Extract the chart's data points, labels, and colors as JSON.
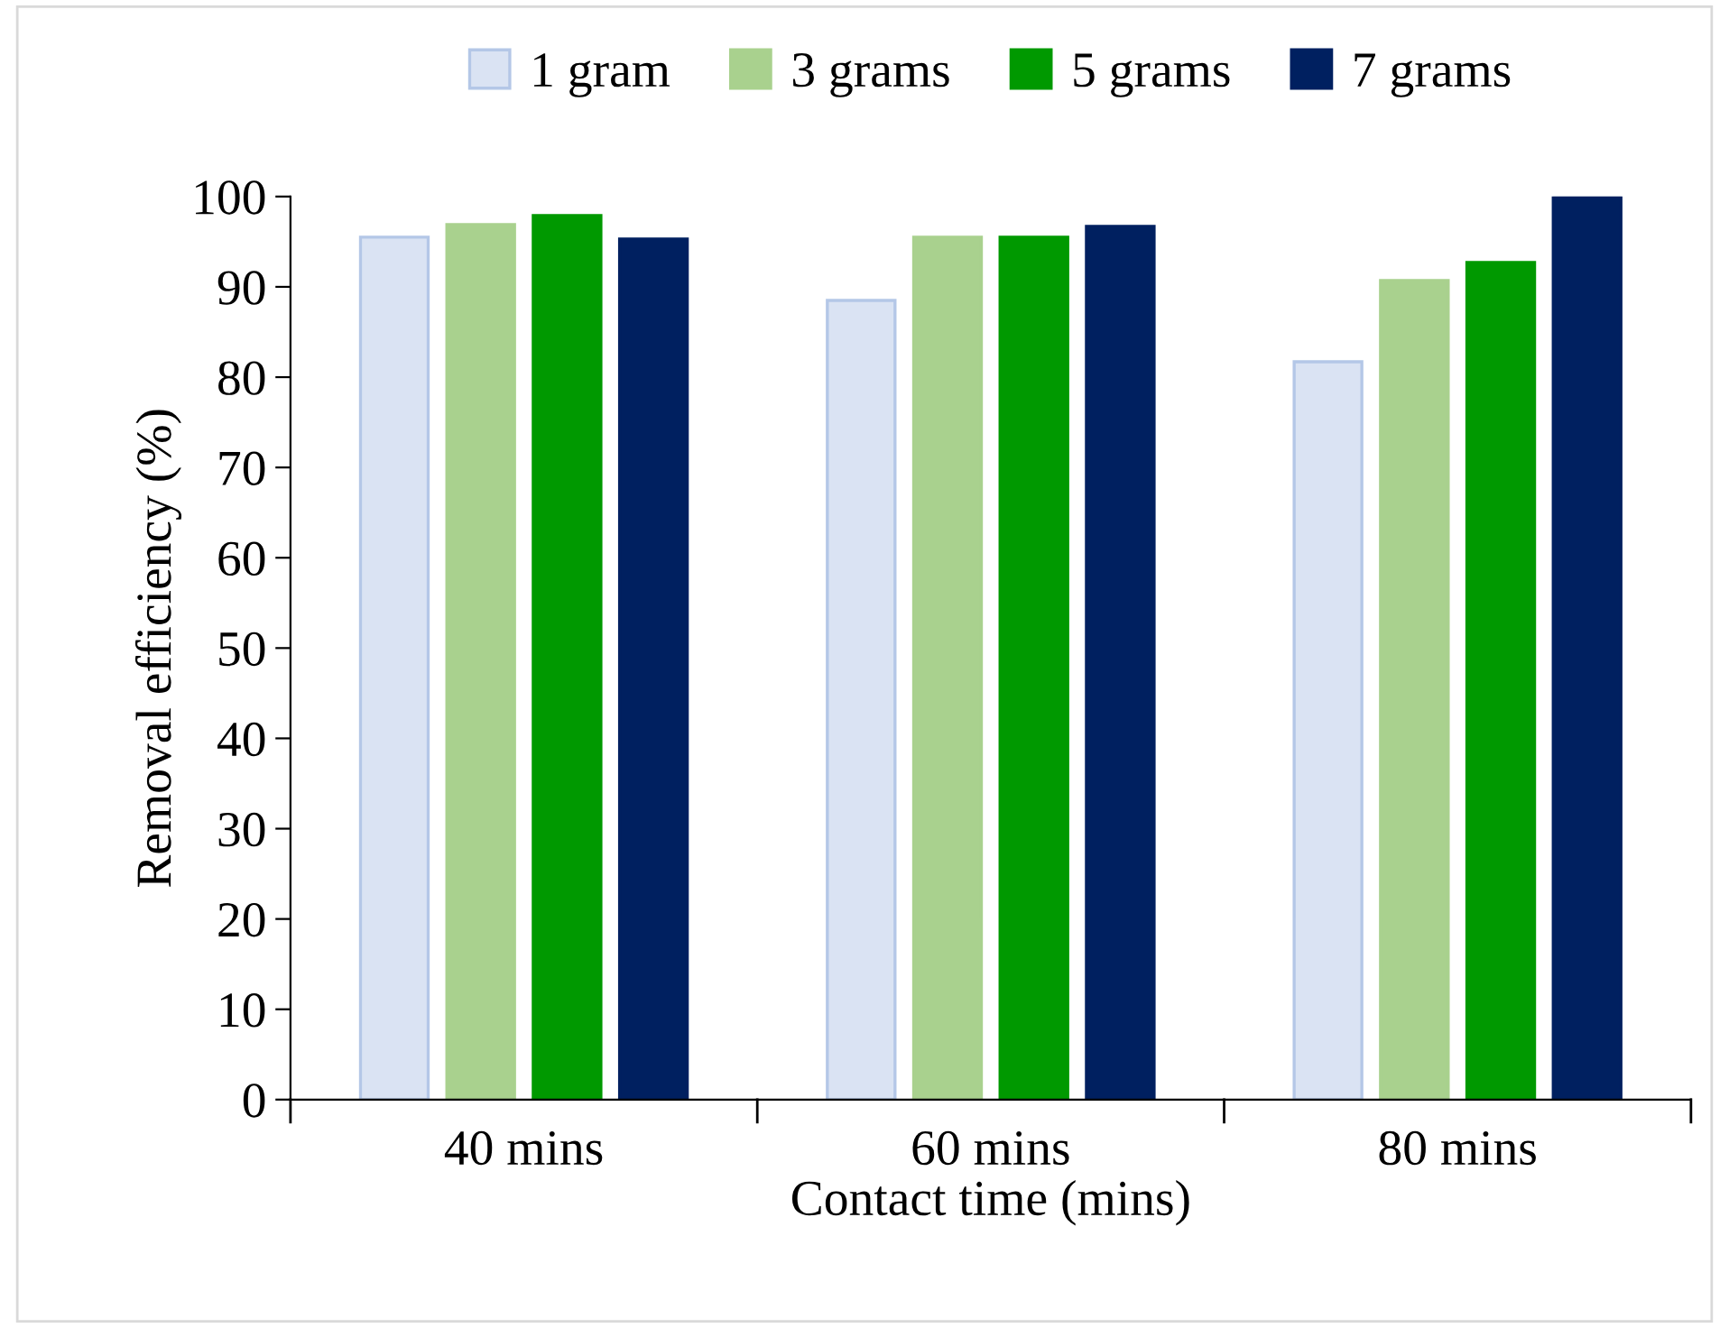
{
  "chart_data": {
    "type": "bar",
    "xlabel": "Contact time (mins)",
    "ylabel": "Removal efficiency (%)",
    "categories": [
      "40 mins",
      "60 mins",
      "80 mins"
    ],
    "series": [
      {
        "name": "1 gram",
        "color": "#dae3f3",
        "values": [
          95.5,
          88.5,
          81.7
        ]
      },
      {
        "name": "3 grams",
        "color": "#a9d18e",
        "values": [
          96.9,
          95.5,
          90.7
        ]
      },
      {
        "name": "5 grams",
        "color": "#009900",
        "values": [
          97.9,
          95.5,
          92.7
        ]
      },
      {
        "name": "7 grams",
        "color": "#002060",
        "values": [
          95.3,
          96.7,
          100
        ]
      }
    ],
    "ylim": [
      0,
      100
    ],
    "yticks": [
      0,
      10,
      20,
      30,
      40,
      50,
      60,
      70,
      80,
      90,
      100
    ],
    "grid": false,
    "legend": "top"
  }
}
